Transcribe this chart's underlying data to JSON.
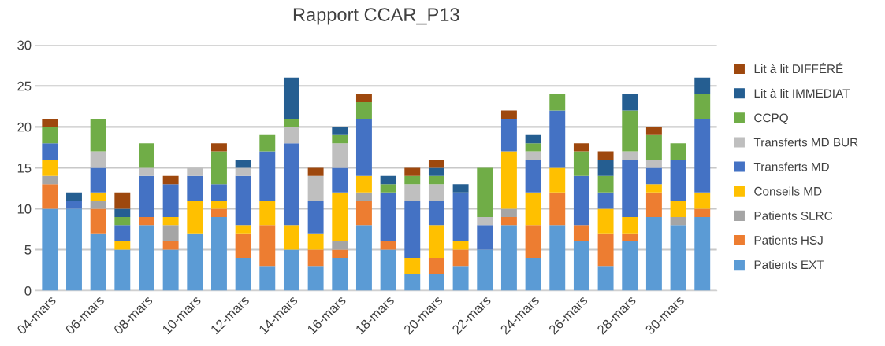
{
  "chart_data": {
    "type": "bar",
    "stacked": true,
    "title": "Rapport CCAR_P13",
    "categories": [
      "04-mars",
      null,
      "06-mars",
      null,
      "08-mars",
      null,
      "10-mars",
      null,
      "12-mars",
      null,
      "14-mars",
      null,
      "16-mars",
      null,
      "18-mars",
      null,
      "20-mars",
      null,
      "22-mars",
      null,
      "24-mars",
      null,
      "26-mars",
      null,
      "28-mars",
      null,
      "30-mars",
      null
    ],
    "ylim": [
      0,
      30
    ],
    "yticks": [
      0,
      5,
      10,
      15,
      20,
      25,
      30
    ],
    "grid": "y",
    "legend": "right",
    "series": [
      {
        "name": "Patients EXT",
        "color": "#5b9bd5",
        "values": [
          10,
          10,
          7,
          5,
          8,
          5,
          7,
          9,
          4,
          3,
          5,
          3,
          4,
          8,
          5,
          2,
          2,
          3,
          5,
          8,
          4,
          8,
          6,
          3,
          6,
          9,
          8,
          9
        ]
      },
      {
        "name": "Patients HSJ",
        "color": "#ed7d31",
        "values": [
          3,
          0,
          3,
          0,
          1,
          1,
          0,
          1,
          3,
          5,
          0,
          2,
          1,
          3,
          1,
          0,
          2,
          2,
          0,
          1,
          4,
          4,
          2,
          4,
          1,
          3,
          0,
          1
        ]
      },
      {
        "name": "Patients SLRC",
        "color": "#a5a5a5",
        "values": [
          1,
          0,
          1,
          0,
          0,
          2,
          0,
          0,
          0,
          0,
          0,
          0,
          1,
          1,
          0,
          0,
          0,
          0,
          0,
          1,
          0,
          0,
          0,
          0,
          0,
          0,
          1,
          0
        ]
      },
      {
        "name": "Conseils MD",
        "color": "#ffc000",
        "values": [
          2,
          0,
          1,
          1,
          0,
          1,
          4,
          1,
          1,
          3,
          3,
          2,
          6,
          2,
          0,
          2,
          4,
          1,
          0,
          7,
          4,
          3,
          0,
          3,
          2,
          1,
          2,
          2
        ]
      },
      {
        "name": "Transferts MD",
        "color": "#4472c4",
        "values": [
          2,
          1,
          3,
          2,
          5,
          4,
          3,
          2,
          6,
          6,
          10,
          4,
          3,
          7,
          6,
          7,
          3,
          6,
          3,
          4,
          4,
          7,
          6,
          2,
          7,
          2,
          5,
          9
        ]
      },
      {
        "name": "Transferts MD BUR",
        "color": "#bfbfbf",
        "values": [
          0,
          0,
          2,
          0,
          1,
          0,
          1,
          0,
          1,
          0,
          2,
          3,
          3,
          0,
          0,
          2,
          2,
          0,
          1,
          0,
          1,
          0,
          0,
          0,
          1,
          1,
          0,
          0
        ]
      },
      {
        "name": "CCPQ",
        "color": "#70ad47",
        "values": [
          2,
          0,
          4,
          1,
          3,
          0,
          0,
          4,
          0,
          2,
          1,
          0,
          1,
          2,
          1,
          1,
          1,
          0,
          6,
          0,
          1,
          2,
          3,
          2,
          5,
          3,
          2,
          3
        ]
      },
      {
        "name": "Lit à lit IMMEDIAT",
        "color": "#255e91",
        "values": [
          0,
          1,
          0,
          1,
          0,
          0,
          0,
          0,
          1,
          0,
          5,
          0,
          1,
          0,
          1,
          0,
          1,
          1,
          0,
          0,
          1,
          0,
          0,
          2,
          2,
          0,
          0,
          2
        ]
      },
      {
        "name": "Lit à lit DIFFÉRÉ",
        "color": "#9e480e",
        "values": [
          1,
          0,
          0,
          2,
          0,
          1,
          0,
          1,
          0,
          0,
          0,
          1,
          0,
          1,
          0,
          1,
          1,
          0,
          0,
          1,
          0,
          0,
          1,
          1,
          0,
          1,
          0,
          0
        ]
      }
    ]
  }
}
